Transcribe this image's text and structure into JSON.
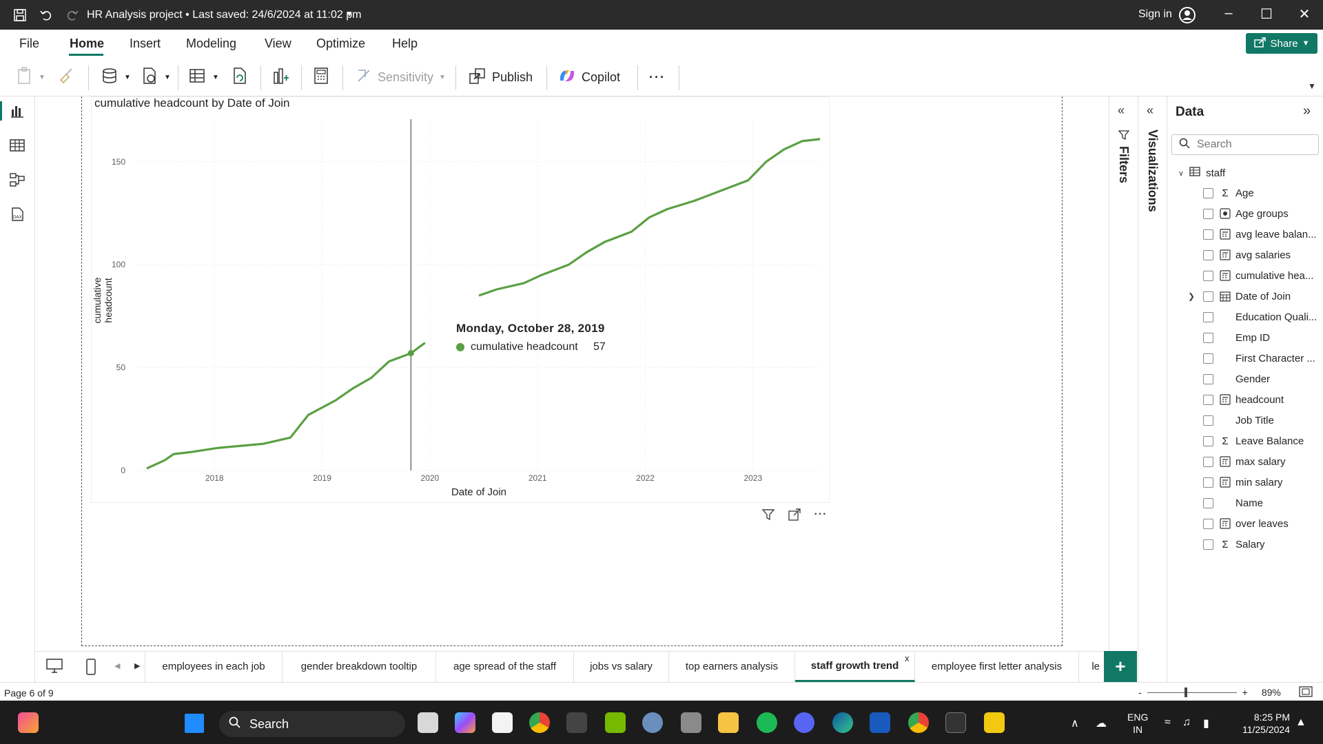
{
  "titlebar": {
    "title": "HR Analysis project • Last saved: 24/6/2024 at 11:02 pm",
    "sign_in": "Sign in"
  },
  "ribbon": {
    "tabs": [
      "File",
      "Home",
      "Insert",
      "Modeling",
      "View",
      "Optimize",
      "Help"
    ],
    "active_tab": "Home",
    "share_label": "Share",
    "toolbar": {
      "sensitivity": "Sensitivity",
      "publish": "Publish",
      "copilot": "Copilot",
      "more": "···"
    }
  },
  "chart_data": {
    "type": "line",
    "title": "cumulative headcount by Date of Join",
    "xlabel": "Date of Join",
    "ylabel": "cumulative headcount",
    "x_ticks": [
      "2018",
      "2019",
      "2020",
      "2021",
      "2022",
      "2023"
    ],
    "y_ticks": [
      0,
      50,
      100,
      150
    ],
    "ylim": [
      0,
      170
    ],
    "xlim": [
      "2017-04",
      "2023-08"
    ],
    "grid": true,
    "series": [
      {
        "name": "cumulative headcount",
        "color": "#5aa043",
        "x": [
          "2017-05",
          "2017-07",
          "2017-08",
          "2017-10",
          "2018-01",
          "2018-06",
          "2018-09",
          "2018-11",
          "2019-02",
          "2019-04",
          "2019-06",
          "2019-08",
          "2019-10-28",
          "2019-12",
          "2020-06",
          "2020-08",
          "2020-11",
          "2021-01",
          "2021-04",
          "2021-06",
          "2021-08",
          "2021-11",
          "2022-01",
          "2022-03",
          "2022-06",
          "2022-09",
          "2022-12",
          "2023-02",
          "2023-04",
          "2023-06",
          "2023-08"
        ],
        "y": [
          1,
          5,
          8,
          9,
          11,
          13,
          16,
          27,
          34,
          40,
          45,
          53,
          57,
          62,
          85,
          88,
          91,
          95,
          100,
          106,
          111,
          116,
          123,
          127,
          131,
          136,
          141,
          150,
          156,
          160,
          161
        ]
      }
    ],
    "tooltip": {
      "date": "Monday, October 28, 2019",
      "series": "cumulative headcount",
      "value": "57"
    }
  },
  "panes": {
    "filters": "Filters",
    "visualizations": "Visualizations",
    "data": {
      "title": "Data",
      "search_placeholder": "Search",
      "table": "staff",
      "fields": [
        {
          "name": "Age",
          "type": "sigma"
        },
        {
          "name": "Age groups",
          "type": "group"
        },
        {
          "name": "avg leave balan...",
          "type": "measure"
        },
        {
          "name": "avg salaries",
          "type": "measure"
        },
        {
          "name": "cumulative hea...",
          "type": "measure"
        },
        {
          "name": "Date of Join",
          "type": "calendar",
          "expandable": true
        },
        {
          "name": "Education Quali...",
          "type": "none"
        },
        {
          "name": "Emp ID",
          "type": "none"
        },
        {
          "name": "First Character ...",
          "type": "none"
        },
        {
          "name": "Gender",
          "type": "none"
        },
        {
          "name": "headcount",
          "type": "measure"
        },
        {
          "name": "Job Title",
          "type": "none"
        },
        {
          "name": "Leave Balance",
          "type": "sigma"
        },
        {
          "name": "max salary",
          "type": "measure"
        },
        {
          "name": "min salary",
          "type": "measure"
        },
        {
          "name": "Name",
          "type": "none"
        },
        {
          "name": "over leaves",
          "type": "measure"
        },
        {
          "name": "Salary",
          "type": "sigma"
        }
      ]
    }
  },
  "page_tabs": {
    "tabs": [
      "employees in each job",
      "gender breakdown tooltip",
      "age spread of the staff",
      "jobs vs salary",
      "top earners analysis",
      "staff growth trend",
      "employee first letter analysis",
      "le"
    ],
    "active": "staff growth trend",
    "close": "x",
    "add": "+"
  },
  "status": {
    "page": "Page 6 of 9",
    "zoom": "89%"
  },
  "taskbar": {
    "search": "Search",
    "lang_top": "ENG",
    "lang_bottom": "IN",
    "time": "8:25 PM",
    "date": "11/25/2024"
  }
}
